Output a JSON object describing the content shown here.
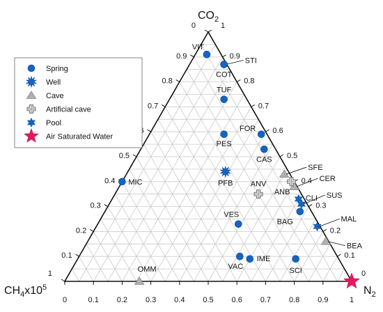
{
  "chart_data": {
    "type": "ternary",
    "vertices": {
      "top": {
        "label": "CO",
        "subscript": "2"
      },
      "left": {
        "label": "CH",
        "subscript": "4",
        "suffix": "x10",
        "superscript": "5"
      },
      "right": {
        "label": "N",
        "subscript": "2"
      }
    },
    "grid": true,
    "grid_step": 0.05,
    "tick_values": [
      "0",
      "0.1",
      "0.2",
      "0.3",
      "0.4",
      "0.5",
      "0.6",
      "0.7",
      "0.8",
      "0.9",
      "1"
    ],
    "legend_position": "top-left",
    "legend": [
      {
        "name": "Spring",
        "marker": "circle",
        "color": "#1565c0"
      },
      {
        "name": "Well",
        "marker": "starburst",
        "color": "#1565c0"
      },
      {
        "name": "Cave",
        "marker": "triangle",
        "color": "#b0b0b0"
      },
      {
        "name": "Artificial cave",
        "marker": "cross",
        "color": "#a8a8a8"
      },
      {
        "name": "Pool",
        "marker": "star6",
        "color": "#1565c0"
      },
      {
        "name": "Air Saturated Water",
        "marker": "star5",
        "color": "#e8175d"
      }
    ],
    "series": [
      {
        "name": "Spring",
        "points": [
          {
            "label": "VIT",
            "co2": 0.91,
            "n2": 0.04
          },
          {
            "label": "STI",
            "co2": 0.87,
            "n2": 0.12
          },
          {
            "label": "COT",
            "co2": 0.87,
            "n2": 0.12
          },
          {
            "label": "TUF",
            "co2": 0.73,
            "n2": 0.19
          },
          {
            "label": "FOR",
            "co2": 0.59,
            "n2": 0.39
          },
          {
            "label": "PES",
            "co2": 0.59,
            "n2": 0.26
          },
          {
            "label": "CAS",
            "co2": 0.53,
            "n2": 0.43
          },
          {
            "label": "MIC",
            "co2": 0.4,
            "n2": 0.0
          },
          {
            "label": "BAG",
            "co2": 0.28,
            "n2": 0.68
          },
          {
            "label": "VES",
            "co2": 0.23,
            "n2": 0.49
          },
          {
            "label": "VAC",
            "co2": 0.1,
            "n2": 0.56
          },
          {
            "label": "IME",
            "co2": 0.09,
            "n2": 0.6
          },
          {
            "label": "SCI",
            "co2": 0.09,
            "n2": 0.76
          }
        ]
      },
      {
        "name": "Well",
        "points": [
          {
            "label": "PFB",
            "co2": 0.44,
            "n2": 0.34
          }
        ]
      },
      {
        "name": "Cave",
        "points": [
          {
            "label": "SFE",
            "co2": 0.43,
            "n2": 0.55
          },
          {
            "label": "CER",
            "co2": 0.38,
            "n2": 0.61
          },
          {
            "label": "BEA",
            "co2": 0.16,
            "n2": 0.83
          },
          {
            "label": "OMM",
            "co2": 0.0,
            "n2": 0.26
          }
        ]
      },
      {
        "name": "Artificial cave",
        "points": [
          {
            "label": "ANB",
            "co2": 0.4,
            "n2": 0.59
          },
          {
            "label": "ANV",
            "co2": 0.35,
            "n2": 0.5
          }
        ]
      },
      {
        "name": "Pool",
        "points": [
          {
            "label": "CLI",
            "co2": 0.33,
            "n2": 0.65
          },
          {
            "label": "SUS",
            "co2": 0.31,
            "n2": 0.67
          },
          {
            "label": "MAL",
            "co2": 0.22,
            "n2": 0.77
          }
        ]
      },
      {
        "name": "Air Saturated Water",
        "points": [
          {
            "label": "",
            "co2": 0.0,
            "n2": 1.0
          }
        ]
      }
    ]
  }
}
